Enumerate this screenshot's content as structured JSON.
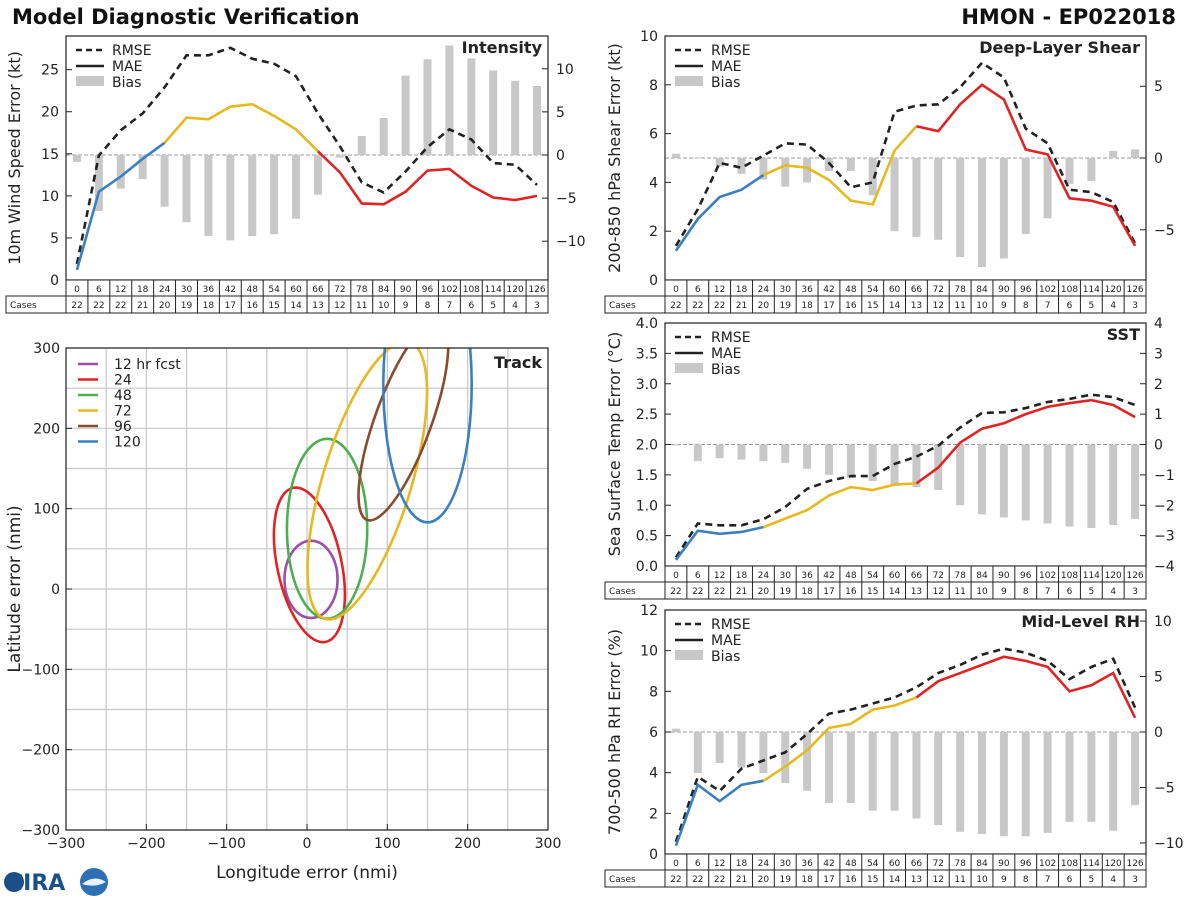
{
  "header": {
    "title": "Model Diagnostic Verification",
    "storm": "HMON - EP022018"
  },
  "logo": {
    "text": "CIRA"
  },
  "colors": {
    "rmse": "#222222",
    "bias": "#c8c8c8",
    "blue": "#3a7fbf",
    "orange": "#e8b81f",
    "red": "#e02424",
    "purple": "#9b4fa5",
    "green": "#4caf50",
    "brown": "#8b4a2b",
    "grid": "#c8c8c8"
  },
  "legend": {
    "rmse": "RMSE",
    "mae": "MAE",
    "bias": "Bias"
  },
  "cases_label": "Cases",
  "chart_data": [
    {
      "type": "line",
      "title": "Intensity",
      "ylabel": "10m Wind Speed Error (kt)",
      "ylim": [
        0,
        29
      ],
      "yticks": [
        0,
        5,
        10,
        15,
        20,
        25
      ],
      "y2lim": [
        -14.5,
        13.8
      ],
      "y2ticks": [
        -10,
        -5,
        0,
        5,
        10
      ],
      "hours": [
        "0",
        "6",
        "12",
        "18",
        "24",
        "30",
        "36",
        "42",
        "48",
        "54",
        "60",
        "66",
        "72",
        "78",
        "84",
        "90",
        "96",
        "102",
        "108",
        "114",
        "120",
        "126"
      ],
      "cases": [
        "22",
        "22",
        "22",
        "21",
        "20",
        "19",
        "18",
        "17",
        "16",
        "15",
        "14",
        "13",
        "12",
        "11",
        "10",
        "9",
        "8",
        "7",
        "6",
        "5",
        "4",
        "3"
      ],
      "rmse": [
        1.9,
        14.8,
        17.8,
        19.8,
        22.9,
        26.7,
        26.7,
        27.6,
        26.3,
        25.7,
        24.2,
        19.8,
        15.9,
        11.6,
        10.4,
        12.9,
        15.8,
        17.9,
        16.7,
        13.9,
        13.7,
        11.3
      ],
      "mae": [
        1.2,
        10.5,
        12.3,
        14.4,
        16.3,
        19.3,
        19.1,
        20.6,
        20.9,
        19.5,
        17.9,
        15.3,
        12.8,
        9.1,
        9.0,
        10.5,
        13.0,
        13.2,
        11.2,
        9.8,
        9.5,
        10.0
      ],
      "bias": [
        -0.8,
        -6.5,
        -3.9,
        -2.8,
        -6.0,
        -7.8,
        -9.4,
        -9.9,
        -9.4,
        -9.2,
        -7.4,
        -4.6,
        -0.3,
        2.2,
        4.3,
        9.2,
        11.1,
        12.7,
        11.2,
        9.8,
        8.6,
        8.0
      ]
    },
    {
      "type": "line",
      "title": "Deep-Layer Shear",
      "ylabel": "200-850 hPa Shear Error (kt)",
      "ylim": [
        0,
        10
      ],
      "yticks": [
        0,
        2,
        4,
        6,
        8,
        10
      ],
      "y2lim": [
        -8.5,
        8.5
      ],
      "y2ticks": [
        -5,
        0,
        5
      ],
      "hours": [
        "0",
        "6",
        "12",
        "18",
        "24",
        "30",
        "36",
        "42",
        "48",
        "54",
        "60",
        "66",
        "72",
        "78",
        "84",
        "90",
        "96",
        "102",
        "108",
        "114",
        "120",
        "126"
      ],
      "cases": [
        "22",
        "22",
        "22",
        "21",
        "20",
        "19",
        "18",
        "17",
        "16",
        "15",
        "14",
        "13",
        "12",
        "11",
        "10",
        "9",
        "8",
        "7",
        "6",
        "5",
        "4",
        "3"
      ],
      "rmse": [
        1.4,
        2.9,
        4.8,
        4.6,
        5.1,
        5.6,
        5.55,
        4.8,
        3.8,
        4.0,
        6.9,
        7.15,
        7.2,
        7.9,
        8.9,
        8.3,
        6.2,
        5.6,
        3.7,
        3.6,
        3.2,
        1.5
      ],
      "mae": [
        1.2,
        2.5,
        3.4,
        3.7,
        4.3,
        4.7,
        4.6,
        4.1,
        3.25,
        3.1,
        5.3,
        6.3,
        6.1,
        7.2,
        8.0,
        7.4,
        5.35,
        5.15,
        3.35,
        3.25,
        3.0,
        1.4
      ],
      "bias": [
        0.3,
        0.05,
        -0.6,
        -1.1,
        -1.5,
        -2.0,
        -1.7,
        -0.9,
        -0.9,
        -2.6,
        -5.1,
        -5.5,
        -5.7,
        -6.9,
        -7.6,
        -7.0,
        -5.3,
        -4.2,
        -1.8,
        -1.6,
        0.5,
        0.6
      ]
    },
    {
      "type": "line",
      "title": "SST",
      "ylabel": "Sea Surface Temp Error (°C)",
      "ylim": [
        0,
        4
      ],
      "yticks": [
        0.0,
        0.5,
        1.0,
        1.5,
        2.0,
        2.5,
        3.0,
        3.5,
        4.0
      ],
      "y2lim": [
        -4,
        4
      ],
      "y2ticks": [
        -4,
        -3,
        -2,
        -1,
        0,
        1,
        2,
        3,
        4
      ],
      "hours": [
        "0",
        "6",
        "12",
        "18",
        "24",
        "30",
        "36",
        "42",
        "48",
        "54",
        "60",
        "66",
        "72",
        "78",
        "84",
        "90",
        "96",
        "102",
        "108",
        "114",
        "120",
        "126"
      ],
      "cases": [
        "22",
        "22",
        "22",
        "21",
        "20",
        "19",
        "18",
        "17",
        "16",
        "15",
        "14",
        "13",
        "12",
        "11",
        "10",
        "9",
        "8",
        "7",
        "6",
        "5",
        "4",
        "3"
      ],
      "rmse": [
        0.14,
        0.7,
        0.67,
        0.67,
        0.77,
        0.97,
        1.27,
        1.4,
        1.48,
        1.48,
        1.68,
        1.8,
        1.98,
        2.28,
        2.52,
        2.53,
        2.6,
        2.7,
        2.75,
        2.82,
        2.78,
        2.65
      ],
      "mae": [
        0.1,
        0.58,
        0.53,
        0.56,
        0.64,
        0.78,
        0.92,
        1.16,
        1.3,
        1.25,
        1.34,
        1.36,
        1.62,
        2.03,
        2.26,
        2.35,
        2.5,
        2.62,
        2.68,
        2.73,
        2.65,
        2.45
      ],
      "bias": [
        0.0,
        -0.55,
        -0.45,
        -0.5,
        -0.55,
        -0.6,
        -0.8,
        -1.0,
        -1.1,
        -1.2,
        -1.3,
        -1.4,
        -1.5,
        -2.0,
        -2.3,
        -2.4,
        -2.5,
        -2.6,
        -2.7,
        -2.75,
        -2.65,
        -2.45
      ]
    },
    {
      "type": "line",
      "title": "Mid-Level RH",
      "ylabel": "700-500 hPa RH Error (%)",
      "ylim": [
        0,
        12
      ],
      "yticks": [
        0,
        2,
        4,
        6,
        8,
        10,
        12
      ],
      "y2lim": [
        -11,
        11
      ],
      "y2ticks": [
        -10,
        -5,
        0,
        5,
        10
      ],
      "hours": [
        "0",
        "6",
        "12",
        "18",
        "24",
        "30",
        "36",
        "42",
        "48",
        "54",
        "60",
        "66",
        "72",
        "78",
        "84",
        "90",
        "96",
        "102",
        "108",
        "114",
        "120",
        "126"
      ],
      "cases": [
        "22",
        "22",
        "22",
        "21",
        "20",
        "19",
        "18",
        "17",
        "16",
        "15",
        "14",
        "13",
        "12",
        "11",
        "10",
        "9",
        "8",
        "7",
        "6",
        "5",
        "4",
        "3"
      ],
      "rmse": [
        0.6,
        3.8,
        3.1,
        4.2,
        4.6,
        5.0,
        5.9,
        6.9,
        7.1,
        7.4,
        7.7,
        8.2,
        8.9,
        9.3,
        9.8,
        10.1,
        9.9,
        9.5,
        8.6,
        9.2,
        9.6,
        7.2
      ],
      "mae": [
        0.4,
        3.4,
        2.6,
        3.4,
        3.6,
        4.3,
        5.1,
        6.2,
        6.4,
        7.1,
        7.3,
        7.7,
        8.5,
        8.9,
        9.3,
        9.7,
        9.5,
        9.2,
        8.0,
        8.3,
        8.9,
        6.7
      ],
      "bias": [
        0.3,
        -3.7,
        -2.8,
        -3.2,
        -3.7,
        -4.6,
        -5.3,
        -6.4,
        -6.4,
        -7.1,
        -7.1,
        -7.8,
        -8.4,
        -9.0,
        -9.2,
        -9.4,
        -9.4,
        -9.1,
        -8.1,
        -8.1,
        -8.9,
        -6.6
      ]
    },
    {
      "type": "scatter",
      "title": "Track",
      "xlabel": "Longitude error (nmi)",
      "ylabel": "Latitude error (nmi)",
      "xlim": [
        -300,
        300
      ],
      "ylim": [
        -300,
        300
      ],
      "ticks": [
        -300,
        -200,
        -100,
        0,
        100,
        200,
        300
      ],
      "legend": [
        "12 hr fcst",
        "24",
        "48",
        "72",
        "96",
        "120"
      ],
      "ellipses": [
        {
          "label": "12 hr fcst",
          "color": "#9b4fa5",
          "cx": 5,
          "cy": 12,
          "rx": 33,
          "ry": 48,
          "angle": 0
        },
        {
          "label": "24",
          "color": "#e02424",
          "cx": 3,
          "cy": 30,
          "rx": 40,
          "ry": 98,
          "angle": -12
        },
        {
          "label": "48",
          "color": "#4caf50",
          "cx": 25,
          "cy": 75,
          "rx": 50,
          "ry": 112,
          "angle": 0
        },
        {
          "label": "72",
          "color": "#e8b81f",
          "cx": 75,
          "cy": 135,
          "rx": 55,
          "ry": 180,
          "angle": 17
        },
        {
          "label": "96",
          "color": "#8b4a2b",
          "cx": 120,
          "cy": 210,
          "rx": 35,
          "ry": 132,
          "angle": 20
        },
        {
          "label": "120",
          "color": "#3a7fbf",
          "cx": 150,
          "cy": 255,
          "rx": 55,
          "ry": 172,
          "angle": 0
        }
      ]
    }
  ]
}
